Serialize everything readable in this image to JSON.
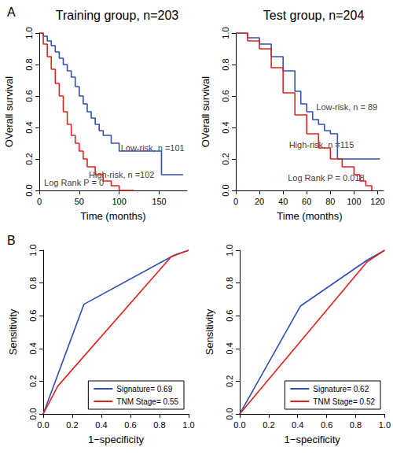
{
  "chart_data": [
    {
      "type": "step",
      "panel_label": "A",
      "title": "Training group, n=203",
      "x_label": "Time (months)",
      "y_label": "OVerall survival",
      "grid": false,
      "xlim": [
        0,
        185
      ],
      "xticks": [
        0,
        50,
        100,
        150
      ],
      "ylim": [
        0,
        1
      ],
      "yticks": [
        {
          "value": 0,
          "label": "0.0"
        },
        {
          "value": 0.2,
          "label": "0.2"
        },
        {
          "value": 0.4,
          "label": "0.4"
        },
        {
          "value": 0.6,
          "label": "0.6"
        },
        {
          "value": 0.8,
          "label": "0.8"
        },
        {
          "value": 1,
          "label": "1.0"
        }
      ],
      "series": [
        {
          "color": "#2f4fb5",
          "x": [
            0,
            5,
            10,
            15,
            20,
            25,
            30,
            35,
            40,
            45,
            50,
            55,
            60,
            65,
            70,
            75,
            80,
            90,
            100,
            110,
            153,
            180
          ],
          "values": [
            1,
            0.98,
            0.95,
            0.92,
            0.88,
            0.84,
            0.8,
            0.76,
            0.72,
            0.66,
            0.6,
            0.55,
            0.5,
            0.46,
            0.42,
            0.38,
            0.35,
            0.3,
            0.25,
            0.25,
            0.1,
            0.1
          ]
        },
        {
          "color": "#e3211c",
          "x": [
            0,
            5,
            10,
            15,
            20,
            25,
            30,
            35,
            40,
            45,
            50,
            55,
            60,
            70,
            80,
            90,
            100,
            118
          ],
          "values": [
            1,
            0.93,
            0.85,
            0.77,
            0.68,
            0.6,
            0.5,
            0.42,
            0.35,
            0.3,
            0.25,
            0.2,
            0.15,
            0.1,
            0.06,
            0.03,
            0,
            0
          ]
        }
      ],
      "annotations": [
        {
          "text": "Low-risk, n =101",
          "x": 102,
          "y": 0.27
        },
        {
          "text": "High-risk, n =102",
          "x": 62,
          "y": 0.1
        },
        {
          "text": "Log Rank P = 0",
          "x": 6,
          "y": 0.05
        }
      ]
    },
    {
      "type": "step",
      "title": "Test group, n=204",
      "x_label": "Time (months)",
      "y_label": "OVerall survival",
      "grid": false,
      "xlim": [
        0,
        125
      ],
      "xticks": [
        0,
        20,
        40,
        60,
        80,
        100,
        120
      ],
      "ylim": [
        0,
        1
      ],
      "yticks": [
        {
          "value": 0,
          "label": "0.0"
        },
        {
          "value": 0.2,
          "label": "0.2"
        },
        {
          "value": 0.4,
          "label": "0.4"
        },
        {
          "value": 0.6,
          "label": "0.6"
        },
        {
          "value": 0.8,
          "label": "0.8"
        },
        {
          "value": 1,
          "label": "1.0"
        }
      ],
      "series": [
        {
          "color": "#2f4fb5",
          "x": [
            0,
            10,
            20,
            30,
            40,
            50,
            55,
            60,
            65,
            70,
            75,
            80,
            86,
            90,
            100,
            122
          ],
          "values": [
            1,
            0.97,
            0.93,
            0.85,
            0.76,
            0.63,
            0.55,
            0.5,
            0.45,
            0.42,
            0.38,
            0.36,
            0.2,
            0.2,
            0.2,
            0.2
          ]
        },
        {
          "color": "#e3211c",
          "x": [
            0,
            10,
            20,
            30,
            40,
            50,
            60,
            70,
            80,
            90,
            100,
            105,
            110,
            115
          ],
          "values": [
            1,
            0.95,
            0.9,
            0.78,
            0.62,
            0.48,
            0.36,
            0.27,
            0.2,
            0.15,
            0.1,
            0.06,
            0.03,
            0
          ]
        }
      ],
      "annotations": [
        {
          "text": "Low-risk, n = 89",
          "x": 68,
          "y": 0.53
        },
        {
          "text": "High-risk, n =115",
          "x": 45,
          "y": 0.29
        },
        {
          "text": "Log Rank P = 0.018",
          "x": 44,
          "y": 0.08
        }
      ]
    },
    {
      "type": "line",
      "panel_label": "B",
      "x_label": "1−specificity",
      "y_label": "Sensitivity",
      "grid": false,
      "legend": "bottom-right",
      "xlim": [
        0,
        1
      ],
      "xticks": [
        {
          "value": 0,
          "label": "0.0"
        },
        {
          "value": 0.2,
          "label": "0.2"
        },
        {
          "value": 0.4,
          "label": "0.4"
        },
        {
          "value": 0.6,
          "label": "0.6"
        },
        {
          "value": 0.8,
          "label": "0.8"
        },
        {
          "value": 1,
          "label": "1.0"
        }
      ],
      "ylim": [
        0,
        1
      ],
      "yticks": [
        {
          "value": 0,
          "label": "0.0"
        },
        {
          "value": 0.2,
          "label": "0.2"
        },
        {
          "value": 0.4,
          "label": "0.4"
        },
        {
          "value": 0.6,
          "label": "0.6"
        },
        {
          "value": 0.8,
          "label": "0.8"
        },
        {
          "value": 1,
          "label": "1.0"
        }
      ],
      "series": [
        {
          "name": "Signature= 0.69",
          "color": "#2f4fb5",
          "x": [
            0,
            0.28,
            0.9,
            1
          ],
          "values": [
            0,
            0.67,
            0.97,
            1
          ]
        },
        {
          "name": "TNM Stage= 0.55",
          "color": "#e3211c",
          "x": [
            0,
            0.1,
            0.88,
            1
          ],
          "values": [
            0,
            0.17,
            0.96,
            1
          ]
        }
      ]
    },
    {
      "type": "line",
      "x_label": "1−specificity",
      "y_label": "Sensitivity",
      "grid": false,
      "legend": "bottom-right",
      "xlim": [
        0,
        1
      ],
      "xticks": [
        {
          "value": 0,
          "label": "0.0"
        },
        {
          "value": 0.2,
          "label": "0.2"
        },
        {
          "value": 0.4,
          "label": "0.4"
        },
        {
          "value": 0.6,
          "label": "0.6"
        },
        {
          "value": 0.8,
          "label": "0.8"
        },
        {
          "value": 1,
          "label": "1.0"
        }
      ],
      "ylim": [
        0,
        1
      ],
      "yticks": [
        {
          "value": 0,
          "label": "0.0"
        },
        {
          "value": 0.2,
          "label": "0.2"
        },
        {
          "value": 0.4,
          "label": "0.4"
        },
        {
          "value": 0.6,
          "label": "0.6"
        },
        {
          "value": 0.8,
          "label": "0.8"
        },
        {
          "value": 1,
          "label": "1.0"
        }
      ],
      "series": [
        {
          "name": "Signature= 0.62",
          "color": "#2f4fb5",
          "x": [
            0,
            0.42,
            0.88,
            1
          ],
          "values": [
            0,
            0.66,
            0.94,
            1
          ]
        },
        {
          "name": "TNM Stage= 0.52",
          "color": "#e3211c",
          "x": [
            0,
            0.88,
            1
          ],
          "values": [
            0,
            0.93,
            1
          ]
        }
      ]
    }
  ]
}
